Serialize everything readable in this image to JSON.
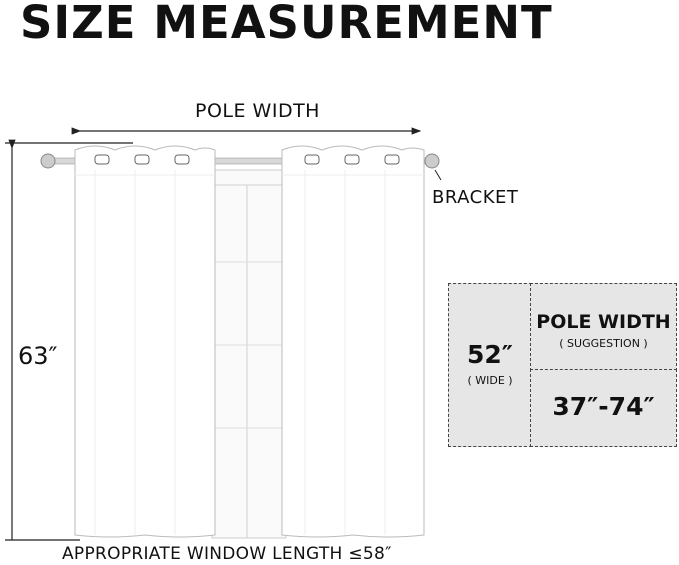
{
  "title": "SIZE MEASUREMENT",
  "diagram": {
    "pole_width_label": "POLE WIDTH",
    "bracket_label": "BRACKET",
    "height_label": "63″",
    "bottom_label": "APPROPRIATE WINDOW LENGTH ≤58″"
  },
  "size_table": {
    "width_value": "52″",
    "width_note": "( WIDE )",
    "pole_header": "POLE WIDTH",
    "pole_note": "( SUGGESTION )",
    "pole_range": "37″-74″"
  }
}
